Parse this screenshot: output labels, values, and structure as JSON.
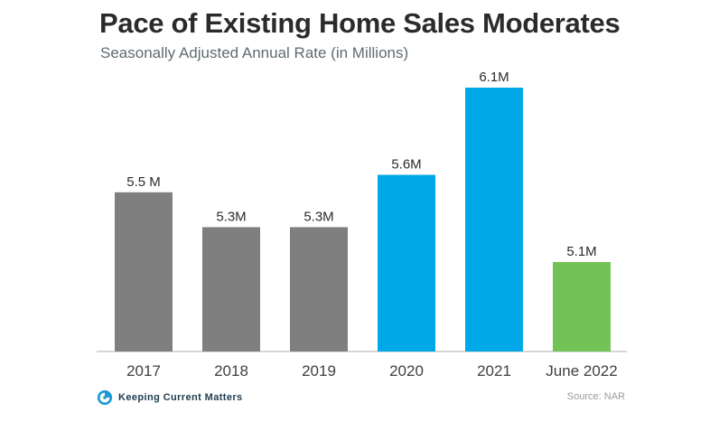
{
  "title": "Pace of Existing Home Sales Moderates",
  "subtitle": "Seasonally Adjusted Annual Rate (in Millions)",
  "chart_data": {
    "type": "bar",
    "title": "Pace of Existing Home Sales Moderates",
    "subtitle": "Seasonally Adjusted Annual Rate (in Millions)",
    "categories": [
      "2017",
      "2018",
      "2019",
      "2020",
      "2021",
      "June 2022"
    ],
    "values": [
      5.5,
      5.3,
      5.3,
      5.6,
      6.1,
      5.1
    ],
    "data_labels": [
      "5.5 M",
      "5.3M",
      "5.3M",
      "5.6M",
      "6.1M",
      "5.1M"
    ],
    "bar_colors": [
      "#7f7f7f",
      "#7f7f7f",
      "#7f7f7f",
      "#00a8e8",
      "#00a8e8",
      "#72c256"
    ],
    "unit": "Millions",
    "xlabel": "",
    "ylabel": "",
    "grid": false,
    "legend": "none"
  },
  "footer": {
    "brand": "Keeping Current Matters",
    "logo_icon": "kcm-swirl-icon",
    "source": "Source: NAR"
  },
  "colors": {
    "axis": "#bfbfbf",
    "tick_label": "#404040",
    "data_label": "#2b2b2b",
    "logo_blue": "#1d9ad6"
  }
}
